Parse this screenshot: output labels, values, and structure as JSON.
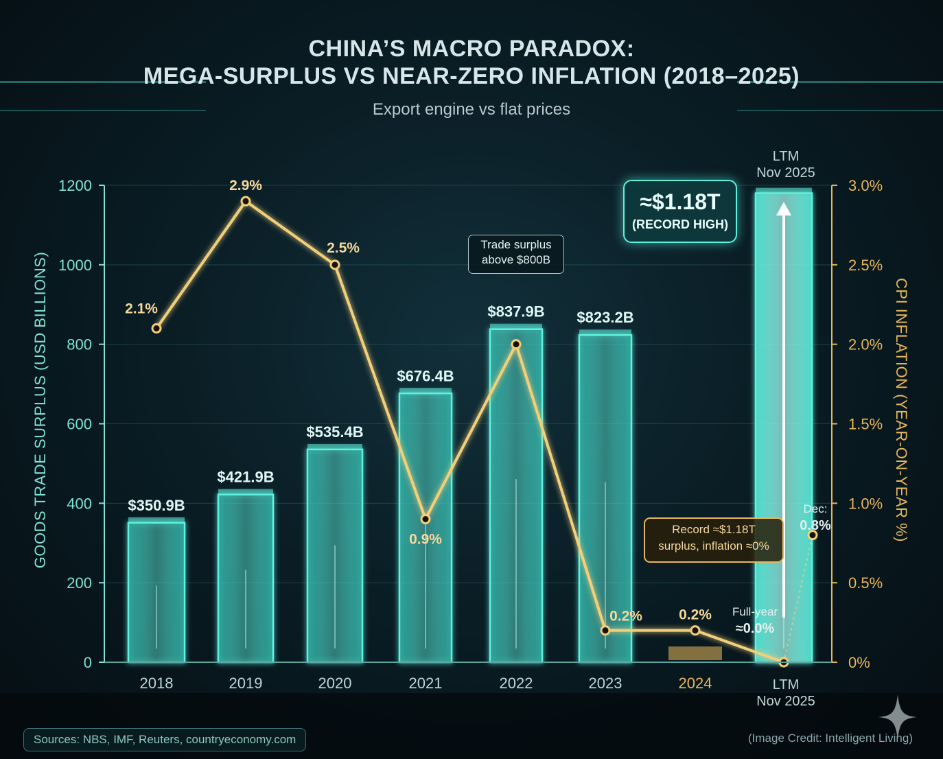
{
  "title_line1": "CHINA’S MACRO PARADOX:",
  "title_line2": "MEGA-SURPLUS VS NEAR-ZERO INFLATION (2018–2025)",
  "subtitle": "Export engine vs flat prices",
  "sources": "Sources: NBS, IMF, Reuters, countryeconomy.com",
  "credit": "(Image Credit: Intelligent Living)",
  "callouts": {
    "record_big": "≈$1.18T",
    "record_small": "(RECORD HIGH)",
    "surplus_line1": "Trade surplus",
    "surplus_line2": "above $800B",
    "record_inf_line1": "Record ≈$1.18T",
    "record_inf_line2": "surplus, inflation ≈0%",
    "ltm_top_line1": "LTM",
    "ltm_top_line2": "Nov 2025",
    "ltm_bottom_line1": "LTM",
    "ltm_bottom_line2": "Nov 2025",
    "dec_prefix": "Dec:",
    "dec_value": "0.8%",
    "fullyear_prefix": "Full-year",
    "fullyear_value": "≈0.0%"
  },
  "colors": {
    "bar": "#5ef2e0",
    "line": "#f2cf7a",
    "left_axis": "#7fe3d6",
    "right_axis": "#e8b75a",
    "bar_2024": "#e8b75a"
  },
  "chart_data": {
    "type": "bar",
    "categories": [
      "2018",
      "2019",
      "2020",
      "2021",
      "2022",
      "2023",
      "2024",
      "LTM Nov 2025"
    ],
    "x_tick_labels": [
      "2018",
      "2019",
      "2020",
      "2021",
      "2022",
      "2023",
      "2024",
      ""
    ],
    "ylabel": "GOODS TRADE SURPLUS (USD BILLIONS)",
    "y2label": "CPI INFLATION (YEAR-ON-YEAR %)",
    "ylim": [
      0,
      1200
    ],
    "y_ticks": [
      0,
      200,
      400,
      600,
      800,
      1000,
      1200
    ],
    "y2lim": [
      0,
      3.0
    ],
    "y2_ticks": [
      "0%",
      "0.5%",
      "1.0%",
      "1.5%",
      "2.0%",
      "2.5%",
      "3.0%"
    ],
    "series": [
      {
        "name": "",
        "kind": "bar",
        "axis": "left",
        "values": [
          350.9,
          421.9,
          535.4,
          676.4,
          837.9,
          823.2,
          30,
          1180
        ],
        "labels": [
          "$350.9B",
          "$421.9B",
          "$535.4B",
          "$676.4B",
          "$837.9B",
          "$823.2B",
          "",
          ""
        ]
      },
      {
        "name": "",
        "kind": "line",
        "axis": "right",
        "values": [
          2.1,
          2.9,
          2.5,
          0.9,
          2.0,
          0.2,
          0.2,
          0.0
        ],
        "labels": [
          "2.1%",
          "2.9%",
          "2.5%",
          "0.9%",
          "",
          "0.2%",
          "0.2%",
          ""
        ]
      },
      {
        "name": "",
        "kind": "point",
        "axis": "right",
        "x": "LTM Nov 2025",
        "value": 0.8
      }
    ],
    "grid": true
  }
}
